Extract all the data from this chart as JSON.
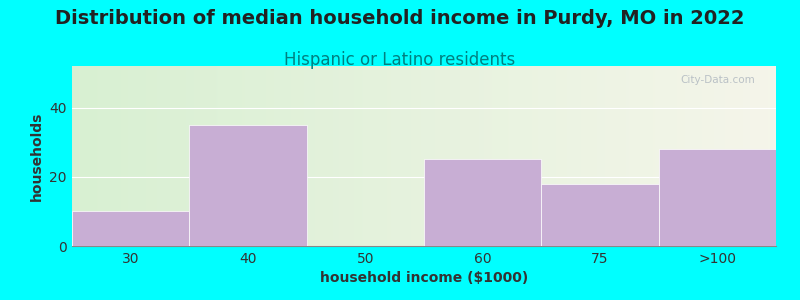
{
  "title": "Distribution of median household income in Purdy, MO in 2022",
  "subtitle": "Hispanic or Latino residents",
  "xlabel": "household income ($1000)",
  "ylabel": "households",
  "categories": [
    "30",
    "40",
    "50",
    "60",
    "75",
    ">100"
  ],
  "values": [
    10,
    35,
    0,
    25,
    18,
    28
  ],
  "bar_color": "#c8aed4",
  "bar_edgecolor": "white",
  "ylim": [
    0,
    52
  ],
  "yticks": [
    0,
    20,
    40
  ],
  "background_color": "#00ffff",
  "plot_bg_gradient_left": "#d8f0d2",
  "plot_bg_gradient_right": "#f5f5ea",
  "title_fontsize": 14,
  "title_color": "#222222",
  "subtitle_fontsize": 12,
  "subtitle_color": "#008080",
  "axis_label_fontsize": 10,
  "tick_fontsize": 10,
  "watermark": "City-Data.com",
  "bar_width": 1.0
}
